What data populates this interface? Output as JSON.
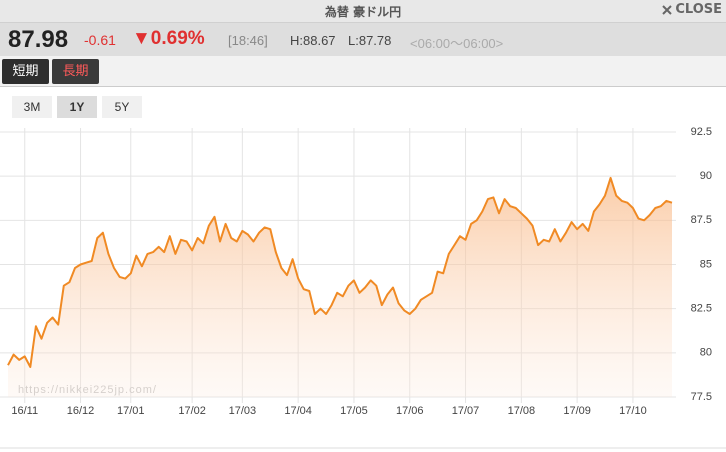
{
  "header": {
    "title": "為替 豪ドル円",
    "close": "CLOSE"
  },
  "quote": {
    "price": "87.98",
    "change": "-0.61",
    "change_pct": "▼0.69%",
    "time": "[18:46]",
    "high": "H:88.67",
    "low": "L:87.78",
    "hours": "<06:00〜06:00>"
  },
  "tabs": [
    "短期",
    "長期"
  ],
  "ranges": [
    "3M",
    "1Y",
    "5Y"
  ],
  "watermark": "https://nikkei225jp.com/",
  "chart_data": {
    "type": "line",
    "categories": [
      null,
      null,
      null,
      "16/11",
      null,
      null,
      null,
      null,
      null,
      null,
      null,
      null,
      null,
      "16/12",
      null,
      null,
      null,
      null,
      null,
      null,
      null,
      null,
      "17/01",
      null,
      null,
      null,
      null,
      null,
      null,
      null,
      null,
      null,
      null,
      "17/02",
      null,
      null,
      null,
      null,
      null,
      null,
      null,
      null,
      "17/03",
      null,
      null,
      null,
      null,
      null,
      null,
      null,
      null,
      null,
      "17/04",
      null,
      null,
      null,
      null,
      null,
      null,
      null,
      null,
      null,
      "17/05",
      null,
      null,
      null,
      null,
      null,
      null,
      null,
      null,
      null,
      "17/06",
      null,
      null,
      null,
      null,
      null,
      null,
      null,
      null,
      null,
      "17/07",
      null,
      null,
      null,
      null,
      null,
      null,
      null,
      null,
      null,
      "17/08",
      null,
      null,
      null,
      null,
      null,
      null,
      null,
      null,
      null,
      "17/09",
      null,
      null,
      null,
      null,
      null,
      null,
      null,
      null,
      null,
      "17/10",
      null,
      null,
      null,
      null,
      null,
      null,
      null
    ],
    "series": [
      {
        "color": "#f08a24",
        "values": [
          79.3,
          79.9,
          79.6,
          79.8,
          79.2,
          81.5,
          80.8,
          81.7,
          82.0,
          81.6,
          83.8,
          84.0,
          84.8,
          85.0,
          85.1,
          85.2,
          86.5,
          86.8,
          85.6,
          84.8,
          84.3,
          84.2,
          84.5,
          85.5,
          84.9,
          85.6,
          85.7,
          86.0,
          85.7,
          86.6,
          85.6,
          86.4,
          86.3,
          85.8,
          86.5,
          86.2,
          87.2,
          87.7,
          86.3,
          87.3,
          86.5,
          86.3,
          86.9,
          86.7,
          86.3,
          86.8,
          87.1,
          87.0,
          85.7,
          84.8,
          84.4,
          85.3,
          84.2,
          83.6,
          83.5,
          82.2,
          82.5,
          82.2,
          82.7,
          83.4,
          83.2,
          83.8,
          84.1,
          83.4,
          83.7,
          84.1,
          83.8,
          82.7,
          83.3,
          83.7,
          82.8,
          82.4,
          82.2,
          82.5,
          83.0,
          83.2,
          83.4,
          84.6,
          84.5,
          85.6,
          86.1,
          86.6,
          86.4,
          87.3,
          87.5,
          88.0,
          88.7,
          88.8,
          87.9,
          88.7,
          88.3,
          88.2,
          87.9,
          87.6,
          87.2,
          86.1,
          86.4,
          86.3,
          87.0,
          86.3,
          86.8,
          87.4,
          87.0,
          87.3,
          86.9,
          88.0,
          88.4,
          88.9,
          89.9,
          88.9,
          88.6,
          88.5,
          88.2,
          87.6,
          87.5,
          87.8,
          88.2,
          88.3,
          88.6,
          88.5
        ]
      }
    ],
    "ylim": [
      77.5,
      92.5
    ],
    "yticks": [
      77.5,
      80,
      82.5,
      85,
      87.5,
      90,
      92.5
    ],
    "grid": true
  }
}
